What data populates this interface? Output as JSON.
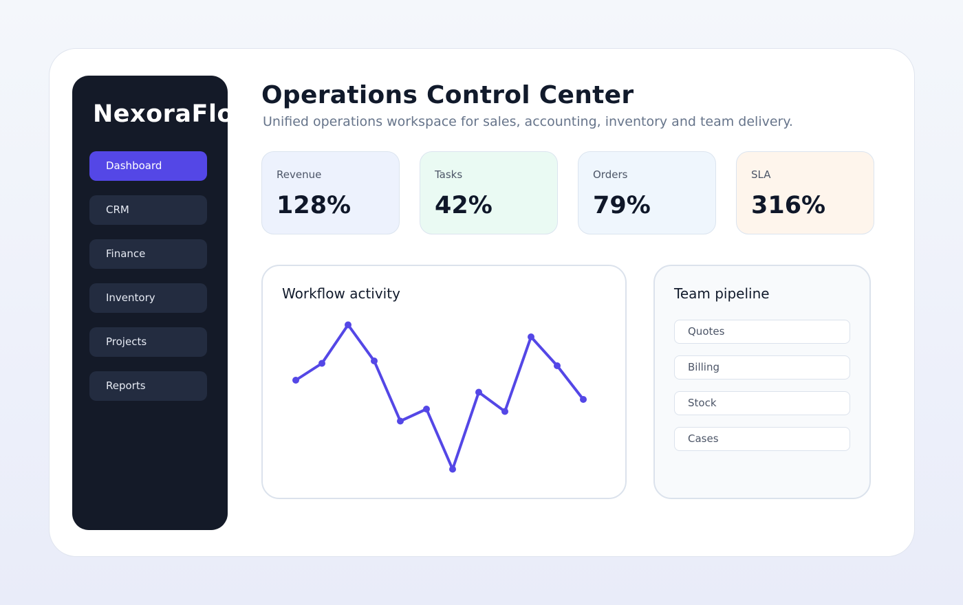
{
  "colors": {
    "accent": "#5447e6",
    "sidebar_bg": "#141a28",
    "nav_item_bg": "#232c40"
  },
  "sidebar": {
    "brand": "NexoraFlow",
    "items": [
      {
        "label": "Dashboard",
        "active": true
      },
      {
        "label": "CRM",
        "active": false
      },
      {
        "label": "Finance",
        "active": false
      },
      {
        "label": "Inventory",
        "active": false
      },
      {
        "label": "Projects",
        "active": false
      },
      {
        "label": "Reports",
        "active": false
      }
    ]
  },
  "header": {
    "title": "Operations Control Center",
    "subtitle": "Unified operations workspace for sales, accounting, inventory and team delivery."
  },
  "stats": [
    {
      "label": "Revenue",
      "value": "128%",
      "color": "#edf2fd"
    },
    {
      "label": "Tasks",
      "value": "42%",
      "color": "#eafaf3"
    },
    {
      "label": "Orders",
      "value": "79%",
      "color": "#eff6fd"
    },
    {
      "label": "SLA",
      "value": "316%",
      "color": "#fef5ec"
    }
  ],
  "activity": {
    "title": "Workflow activity"
  },
  "chart_data": {
    "type": "line",
    "title": "Workflow activity",
    "x": [
      1,
      2,
      3,
      4,
      5,
      6,
      7,
      8,
      9,
      10,
      11,
      12
    ],
    "series": [
      {
        "values": [
          56,
          63,
          79,
          64,
          39,
          44,
          19,
          51,
          43,
          74,
          62,
          48
        ]
      }
    ],
    "ylim": [
      0,
      100
    ],
    "grid": false,
    "color": "#5447e6"
  },
  "pipeline": {
    "title": "Team pipeline",
    "items": [
      "Quotes",
      "Billing",
      "Stock",
      "Cases"
    ]
  }
}
